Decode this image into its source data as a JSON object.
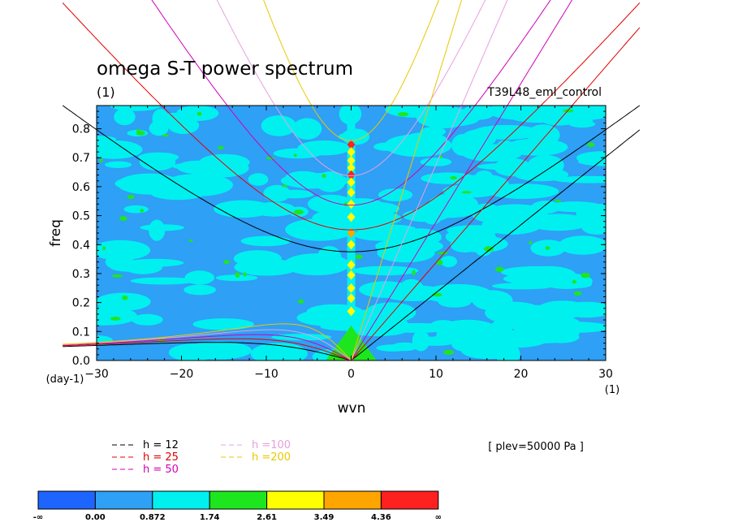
{
  "chart_data": {
    "type": "heatmap",
    "title": "omega S-T power spectrum",
    "subtitle_units": "(1)",
    "dataset_label": "T39L48_eml_control",
    "level_label": "[ plev=50000 Pa ]",
    "xlabel": "wvn",
    "xlabel_units": "(1)",
    "ylabel": "freq",
    "ylabel_units": "(day-1)",
    "xlim": [
      -30,
      30
    ],
    "ylim": [
      0,
      0.88
    ],
    "xticks": [
      -30,
      -20,
      -10,
      0,
      10,
      20,
      30
    ],
    "yticks": [
      0.0,
      0.1,
      0.2,
      0.3,
      0.4,
      0.5,
      0.6,
      0.7,
      0.8
    ],
    "ytick_labels": [
      "0.0",
      "0.1",
      "0.2",
      "0.3",
      "0.4",
      "0.5",
      "0.6",
      "0.7",
      "0.8"
    ],
    "dispersion_curves": [
      {
        "label": "h = 12",
        "h": 12,
        "color": "#000000"
      },
      {
        "label": "h = 25",
        "h": 25,
        "color": "#e00000"
      },
      {
        "label": "h = 50",
        "h": 50,
        "color": "#d000b8"
      },
      {
        "label": "h =100",
        "h": 100,
        "color": "#e6a0e0"
      },
      {
        "label": "h =200",
        "h": 200,
        "color": "#e8c800"
      }
    ],
    "colorbar": {
      "levels": [
        "-∞",
        "0.00",
        "0.872",
        "1.74",
        "2.61",
        "3.49",
        "4.36",
        "∞"
      ],
      "colors": [
        "#1e64ff",
        "#2ea0f5",
        "#00f0f0",
        "#1ee61e",
        "#ffff00",
        "#ffa500",
        "#ff2020"
      ]
    },
    "spectral_peaks_k0": [
      {
        "freq": 0.745,
        "color": "#ff2020"
      },
      {
        "freq": 0.72,
        "color": "#ffff00"
      },
      {
        "freq": 0.69,
        "color": "#ffff00"
      },
      {
        "freq": 0.665,
        "color": "#ffff00"
      },
      {
        "freq": 0.64,
        "color": "#ff2020"
      },
      {
        "freq": 0.615,
        "color": "#ffff00"
      },
      {
        "freq": 0.58,
        "color": "#ffff00"
      },
      {
        "freq": 0.54,
        "color": "#ffff00"
      },
      {
        "freq": 0.495,
        "color": "#ffff00"
      },
      {
        "freq": 0.44,
        "color": "#ffa500"
      },
      {
        "freq": 0.4,
        "color": "#ffff00"
      },
      {
        "freq": 0.33,
        "color": "#ffff00"
      },
      {
        "freq": 0.295,
        "color": "#ffff00"
      },
      {
        "freq": 0.25,
        "color": "#ffff00"
      },
      {
        "freq": 0.215,
        "color": "#ffff00"
      },
      {
        "freq": 0.17,
        "color": "#ffff00"
      }
    ]
  }
}
